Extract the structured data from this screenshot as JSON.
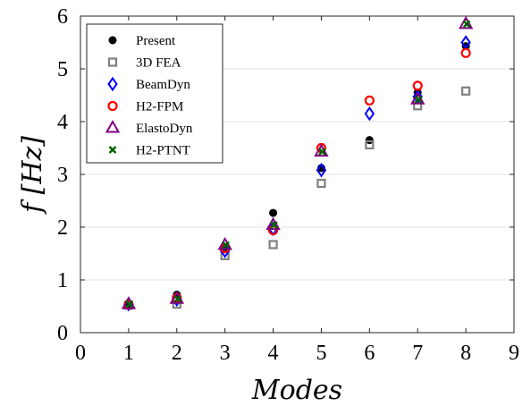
{
  "chart_data": {
    "type": "scatter",
    "title": "",
    "xlabel": "Modes",
    "ylabel": "f [Hz]",
    "xlim": [
      0,
      9
    ],
    "ylim": [
      0,
      6
    ],
    "xticks": [
      "0",
      "1",
      "2",
      "3",
      "4",
      "5",
      "6",
      "7",
      "8",
      "9"
    ],
    "yticks": [
      "0",
      "1",
      "2",
      "3",
      "4",
      "5",
      "6"
    ],
    "grid": "horizontal",
    "legend_position": "top-left",
    "series": [
      {
        "name": "Present",
        "marker": "filled-circle",
        "color": "#000000",
        "x": [
          1,
          2,
          3,
          4,
          5,
          6,
          7,
          8
        ],
        "y": [
          0.53,
          0.72,
          1.62,
          2.27,
          3.12,
          3.65,
          4.55,
          5.43
        ]
      },
      {
        "name": "3D FEA",
        "marker": "square",
        "color": "#808080",
        "x": [
          1,
          2,
          3,
          4,
          5,
          6,
          7,
          8
        ],
        "y": [
          0.52,
          0.54,
          1.46,
          1.67,
          2.83,
          3.56,
          4.3,
          4.58
        ]
      },
      {
        "name": "BeamDyn",
        "marker": "diamond",
        "color": "#0000ff",
        "x": [
          1,
          2,
          3,
          4,
          5,
          6,
          7,
          8
        ],
        "y": [
          0.54,
          0.63,
          1.55,
          1.97,
          3.08,
          4.15,
          4.47,
          5.5
        ]
      },
      {
        "name": "H2-FPM",
        "marker": "circle",
        "color": "#ff0000",
        "x": [
          1,
          2,
          3,
          4,
          5,
          6,
          7,
          8
        ],
        "y": [
          0.53,
          0.66,
          1.6,
          1.94,
          3.5,
          4.4,
          4.68,
          5.3
        ]
      },
      {
        "name": "ElastoDyn",
        "marker": "triangle",
        "color": "#800080",
        "x": [
          1,
          2,
          3,
          4,
          5,
          6,
          7,
          8
        ],
        "y": [
          0.54,
          0.64,
          1.66,
          2.04,
          3.43,
          null,
          4.42,
          5.85
        ]
      },
      {
        "name": "H2-PTNT",
        "marker": "x",
        "color": "#006400",
        "x": [
          1,
          2,
          3,
          4,
          5,
          6,
          7,
          8
        ],
        "y": [
          0.54,
          0.64,
          1.66,
          2.04,
          3.43,
          null,
          4.42,
          5.85
        ]
      }
    ]
  }
}
